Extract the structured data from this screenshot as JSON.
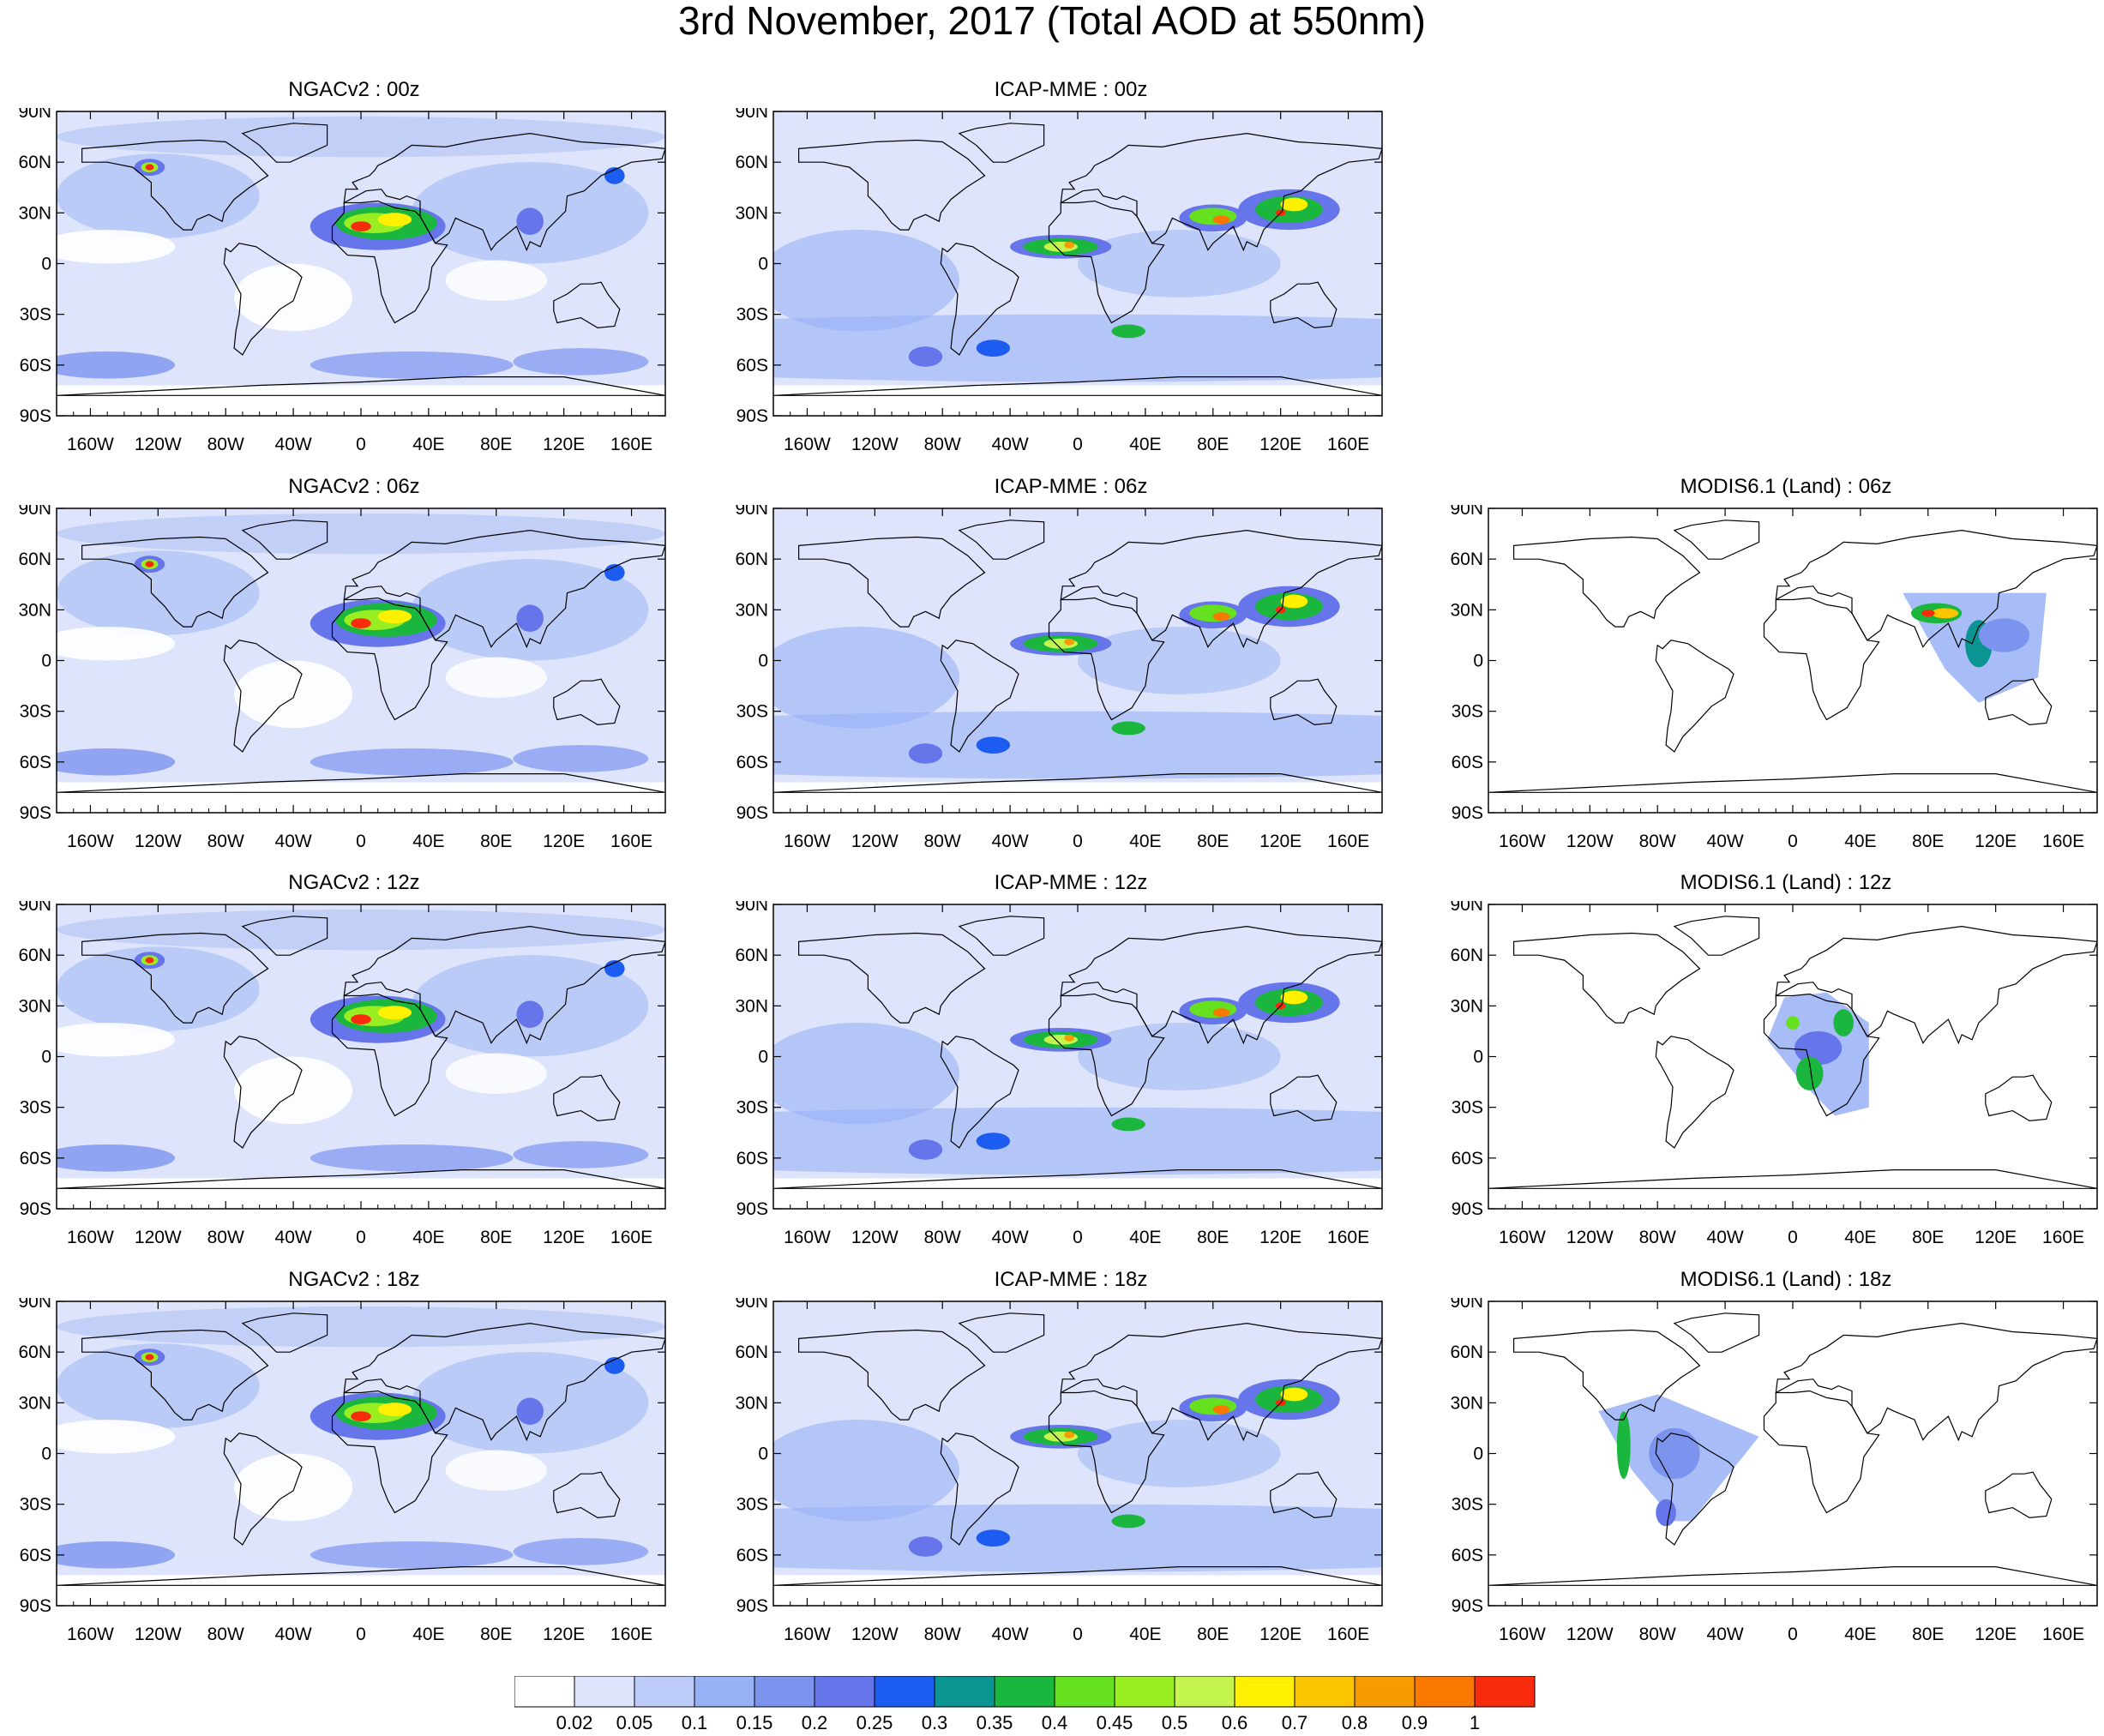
{
  "title": "3rd November, 2017 (Total AOD at 550nm)",
  "colors": {
    "white": "#ffffff",
    "c1": "#dde4fb",
    "c2": "#bccbf8",
    "c3": "#99b1f6",
    "c4": "#7d94ef",
    "c5": "#6775ea",
    "c6": "#1d5cf0",
    "c7": "#0b9592",
    "c8": "#1ab63e",
    "c9": "#66e11f",
    "c10": "#99ee22",
    "c11": "#c4f44e",
    "c12": "#fff000",
    "c13": "#fbc600",
    "c14": "#f79b00",
    "c15": "#f97800",
    "c16": "#f82c0c"
  },
  "chart_data": {
    "type": "heatmap",
    "panels": [
      {
        "id": "ngacv2-00z",
        "title": "NGACv2 : 00z",
        "model": "NGACv2",
        "time": "00z",
        "coverage": "global"
      },
      {
        "id": "icap-00z",
        "title": "ICAP-MME : 00z",
        "model": "ICAP-MME",
        "time": "00z",
        "coverage": "global"
      },
      {
        "id": "ngacv2-06z",
        "title": "NGACv2 : 06z",
        "model": "NGACv2",
        "time": "06z",
        "coverage": "global"
      },
      {
        "id": "icap-06z",
        "title": "ICAP-MME : 06z",
        "model": "ICAP-MME",
        "time": "06z",
        "coverage": "global"
      },
      {
        "id": "modis-06z",
        "title": "MODIS6.1 (Land) : 06z",
        "model": "MODIS6.1 (Land)",
        "time": "06z",
        "coverage": "swath-asia"
      },
      {
        "id": "ngacv2-12z",
        "title": "NGACv2 : 12z",
        "model": "NGACv2",
        "time": "12z",
        "coverage": "global"
      },
      {
        "id": "icap-12z",
        "title": "ICAP-MME : 12z",
        "model": "ICAP-MME",
        "time": "12z",
        "coverage": "global"
      },
      {
        "id": "modis-12z",
        "title": "MODIS6.1 (Land) : 12z",
        "model": "MODIS6.1 (Land)",
        "time": "12z",
        "coverage": "swath-africa"
      },
      {
        "id": "ngacv2-18z",
        "title": "NGACv2 : 18z",
        "model": "NGACv2",
        "time": "18z",
        "coverage": "global"
      },
      {
        "id": "icap-18z",
        "title": "ICAP-MME : 18z",
        "model": "ICAP-MME",
        "time": "18z",
        "coverage": "global"
      },
      {
        "id": "modis-18z",
        "title": "MODIS6.1 (Land) : 18z",
        "model": "MODIS6.1 (Land)",
        "time": "18z",
        "coverage": "swath-americas"
      }
    ],
    "x_ticks": [
      "160W",
      "120W",
      "80W",
      "40W",
      "0",
      "40E",
      "80E",
      "120E",
      "160E"
    ],
    "x_tick_values": [
      -160,
      -120,
      -80,
      -40,
      0,
      40,
      80,
      120,
      160
    ],
    "y_ticks": [
      "90N",
      "60N",
      "30N",
      "0",
      "30S",
      "60S",
      "90S"
    ],
    "y_tick_values": [
      90,
      60,
      30,
      0,
      -30,
      -60,
      -90
    ],
    "xlim": [
      -180,
      180
    ],
    "ylim": [
      -90,
      90
    ],
    "colorbar": {
      "labels": [
        "0.02",
        "0.05",
        "0.1",
        "0.15",
        "0.2",
        "0.25",
        "0.3",
        "0.35",
        "0.4",
        "0.45",
        "0.5",
        "0.6",
        "0.7",
        "0.8",
        "0.9",
        "1"
      ],
      "colors": [
        "#ffffff",
        "#dde4fb",
        "#bccbf8",
        "#99b1f6",
        "#7d94ef",
        "#6775ea",
        "#1d5cf0",
        "#0b9592",
        "#1ab63e",
        "#66e11f",
        "#99ee22",
        "#c4f44e",
        "#fff000",
        "#fbc600",
        "#f79b00",
        "#f97800",
        "#f82c0c"
      ]
    }
  }
}
